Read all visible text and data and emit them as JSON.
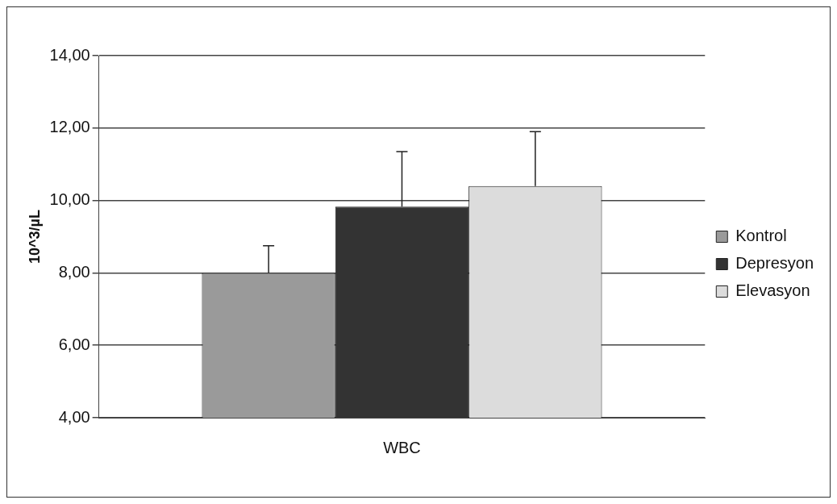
{
  "chart_data": {
    "type": "bar",
    "categories": [
      "WBC"
    ],
    "ylabel": "10^3/µL",
    "series": [
      {
        "name": "Kontrol",
        "color": "#9a9a9a",
        "values": [
          8.0
        ],
        "errors": [
          [
            8.0,
            8.75
          ]
        ]
      },
      {
        "name": "Depresyon",
        "color": "#333333",
        "values": [
          9.83
        ],
        "errors": [
          [
            9.83,
            11.35
          ]
        ]
      },
      {
        "name": "Elevasyon",
        "color": "#dcdcdc",
        "values": [
          10.4
        ],
        "errors": [
          [
            10.4,
            11.9
          ]
        ]
      }
    ],
    "ylim": [
      4,
      14
    ],
    "yticks": [
      {
        "value": 4,
        "label": "4,00"
      },
      {
        "value": 6,
        "label": "6,00"
      },
      {
        "value": 8,
        "label": "8,00"
      },
      {
        "value": 10,
        "label": "10,00"
      },
      {
        "value": 12,
        "label": "12,00"
      },
      {
        "value": 14,
        "label": "14,00"
      }
    ],
    "grid": "y",
    "legend": "right"
  }
}
